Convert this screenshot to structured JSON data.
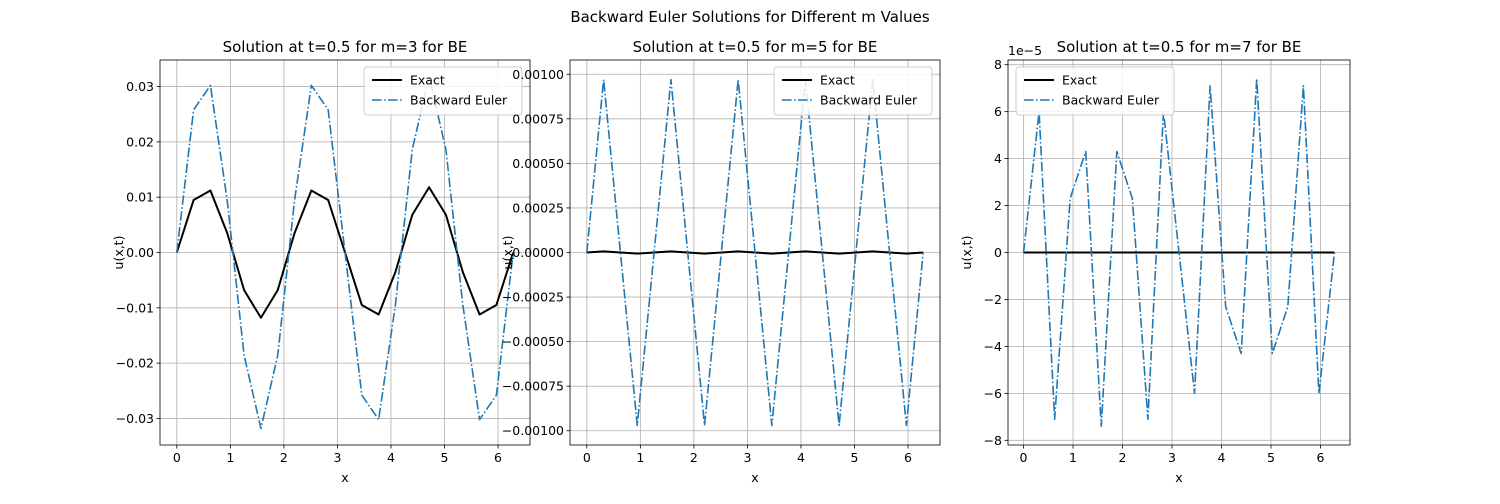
{
  "figure": {
    "suptitle": "Backward Euler Solutions for Different m Values"
  },
  "chart_data": [
    {
      "type": "line",
      "title": "Solution at t=0.5 for m=3 for BE",
      "xlabel": "x",
      "ylabel": "u(x,t)",
      "xlim": [
        -0.314,
        6.597
      ],
      "ylim": [
        -0.0348,
        0.0348
      ],
      "xticks": [
        0,
        1,
        2,
        3,
        4,
        5,
        6
      ],
      "xtick_labels": [
        "0",
        "1",
        "2",
        "3",
        "4",
        "5",
        "6"
      ],
      "yticks": [
        -0.03,
        -0.02,
        -0.01,
        0,
        0.01,
        0.02,
        0.03
      ],
      "ytick_labels": [
        "−0.03",
        "−0.02",
        "−0.01",
        "0.00",
        "0.01",
        "0.02",
        "0.03"
      ],
      "offset_text": "",
      "grid": true,
      "legend": {
        "position": "top-right",
        "entries": [
          "Exact",
          "Backward Euler"
        ]
      },
      "series": [
        {
          "name": "Exact",
          "color": "#000000",
          "style": "solid",
          "x": [
            0,
            0.314,
            0.628,
            0.942,
            1.257,
            1.571,
            1.885,
            2.199,
            2.513,
            2.827,
            3.142,
            3.456,
            3.77,
            4.084,
            4.398,
            4.712,
            5.027,
            5.341,
            5.655,
            5.969,
            6.283
          ],
          "y": [
            0,
            0.0095,
            0.0112,
            0.0035,
            -0.0068,
            -0.0118,
            -0.0068,
            0.0035,
            0.0112,
            0.0095,
            0,
            -0.0095,
            -0.0112,
            -0.0035,
            0.0068,
            0.0118,
            0.0068,
            -0.0035,
            -0.0112,
            -0.0095,
            0
          ]
        },
        {
          "name": "Backward Euler",
          "color": "#1f77b4",
          "style": "dashdot",
          "x": [
            0,
            0.314,
            0.628,
            0.942,
            1.257,
            1.571,
            1.885,
            2.199,
            2.513,
            2.827,
            3.142,
            3.456,
            3.77,
            4.084,
            4.398,
            4.712,
            5.027,
            5.341,
            5.655,
            5.969,
            6.283
          ],
          "y": [
            0,
            0.0258,
            0.0302,
            0.0094,
            -0.0186,
            -0.0318,
            -0.0186,
            0.0094,
            0.0302,
            0.0258,
            0,
            -0.0258,
            -0.0302,
            -0.0094,
            0.0186,
            0.0318,
            0.0186,
            -0.0094,
            -0.0302,
            -0.0258,
            0
          ]
        }
      ]
    },
    {
      "type": "line",
      "title": "Solution at t=0.5 for m=5 for BE",
      "xlabel": "x",
      "ylabel": "u(x,t)",
      "xlim": [
        -0.314,
        6.597
      ],
      "ylim": [
        -0.00108,
        0.00108
      ],
      "xticks": [
        0,
        1,
        2,
        3,
        4,
        5,
        6
      ],
      "xtick_labels": [
        "0",
        "1",
        "2",
        "3",
        "4",
        "5",
        "6"
      ],
      "yticks": [
        -0.001,
        -0.00075,
        -0.0005,
        -0.00025,
        0,
        0.00025,
        0.0005,
        0.00075,
        0.001
      ],
      "ytick_labels": [
        "−0.00100",
        "−0.00075",
        "−0.00050",
        "−0.00025",
        "0.00000",
        "0.00025",
        "0.00050",
        "0.00075",
        "0.00100"
      ],
      "offset_text": "",
      "grid": true,
      "legend": {
        "position": "top-right",
        "entries": [
          "Exact",
          "Backward Euler"
        ]
      },
      "series": [
        {
          "name": "Exact",
          "color": "#000000",
          "style": "solid",
          "x": [
            0,
            0.314,
            0.628,
            0.942,
            1.257,
            1.571,
            1.885,
            2.199,
            2.513,
            2.827,
            3.142,
            3.456,
            3.77,
            4.084,
            4.398,
            4.712,
            5.027,
            5.341,
            5.655,
            5.969,
            6.283
          ],
          "y": [
            0,
            6e-06,
            0,
            -6e-06,
            0,
            6e-06,
            0,
            -6e-06,
            0,
            6e-06,
            0,
            -6e-06,
            0,
            6e-06,
            0,
            -6e-06,
            0,
            6e-06,
            0,
            -6e-06,
            0
          ]
        },
        {
          "name": "Backward Euler",
          "color": "#1f77b4",
          "style": "dashdot",
          "x": [
            0,
            0.314,
            0.628,
            0.942,
            1.257,
            1.571,
            1.885,
            2.199,
            2.513,
            2.827,
            3.142,
            3.456,
            3.77,
            4.084,
            4.398,
            4.712,
            5.027,
            5.341,
            5.655,
            5.969,
            6.283
          ],
          "y": [
            0,
            0.00097,
            0,
            -0.00097,
            0,
            0.00097,
            0,
            -0.00097,
            0,
            0.00097,
            0,
            -0.00097,
            0,
            0.00097,
            0,
            -0.00097,
            0,
            0.00097,
            0,
            -0.00097,
            0
          ]
        }
      ]
    },
    {
      "type": "line",
      "title": "Solution at t=0.5 for m=7 for BE",
      "xlabel": "x",
      "ylabel": "u(x,t)",
      "xlim": [
        -0.314,
        6.597
      ],
      "ylim": [
        -8.2,
        8.2
      ],
      "xticks": [
        0,
        1,
        2,
        3,
        4,
        5,
        6
      ],
      "xtick_labels": [
        "0",
        "1",
        "2",
        "3",
        "4",
        "5",
        "6"
      ],
      "yticks": [
        -8,
        -6,
        -4,
        -2,
        0,
        2,
        4,
        6,
        8
      ],
      "ytick_labels": [
        "−8",
        "−6",
        "−4",
        "−2",
        "0",
        "2",
        "4",
        "6",
        "8"
      ],
      "offset_text": "1e−5",
      "grid": true,
      "legend": {
        "position": "top-left",
        "entries": [
          "Exact",
          "Backward Euler"
        ]
      },
      "series": [
        {
          "name": "Exact",
          "color": "#000000",
          "style": "solid",
          "x": [
            0,
            0.314,
            0.628,
            0.942,
            1.257,
            1.571,
            1.885,
            2.199,
            2.513,
            2.827,
            3.142,
            3.456,
            3.77,
            4.084,
            4.398,
            4.712,
            5.027,
            5.341,
            5.655,
            5.969,
            6.283
          ],
          "y": [
            0,
            0,
            0,
            0,
            0,
            0,
            0,
            0,
            0,
            0,
            0,
            0,
            0,
            0,
            0,
            0,
            0,
            0,
            0,
            0,
            0
          ]
        },
        {
          "name": "Backward Euler",
          "color": "#1f77b4",
          "style": "dashdot",
          "x": [
            0,
            0.314,
            0.628,
            0.942,
            1.257,
            1.571,
            1.885,
            2.199,
            2.513,
            2.827,
            3.142,
            3.456,
            3.77,
            4.084,
            4.398,
            4.712,
            5.027,
            5.341,
            5.655,
            5.969,
            6.283
          ],
          "y": [
            0,
            6.0,
            -7.1,
            2.3,
            4.3,
            -7.4,
            4.3,
            2.3,
            -7.1,
            6.0,
            0,
            -6.0,
            7.1,
            -2.3,
            -4.3,
            7.4,
            -4.3,
            -2.3,
            7.1,
            -6.0,
            0
          ]
        }
      ]
    }
  ]
}
